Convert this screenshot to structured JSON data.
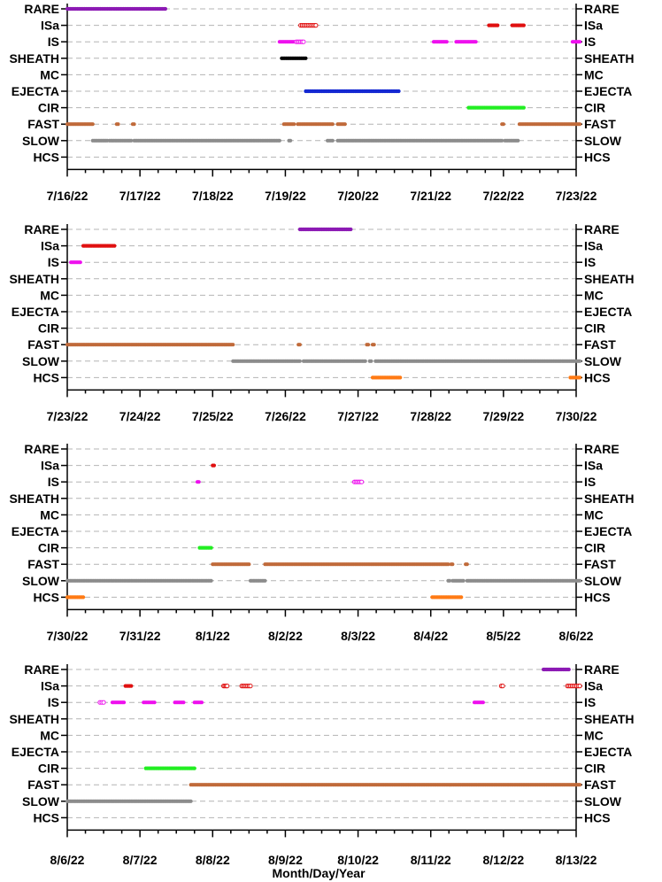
{
  "chart_data": {
    "type": "scatter",
    "category_labels": [
      "RARE",
      "ISa",
      "IS",
      "SHEATH",
      "MC",
      "EJECTA",
      "CIR",
      "FAST",
      "SLOW",
      "HCS"
    ],
    "xlabel": "Month/Day/Year",
    "grid": true,
    "colors": {
      "RARE": "#8c1ab4",
      "ISa": "#e01010",
      "IS": "#ee10ee",
      "SHEATH": "#000000",
      "EJECTA": "#1428d2",
      "CIR": "#22ee22",
      "FAST": "#c06a3a",
      "SLOW": "#8c8c8c",
      "HCS": "#ff7a14"
    },
    "panels": [
      {
        "xlim": [
          "7/16/22",
          "7/23/22"
        ],
        "tick_labels": [
          "7/16/22",
          "7/17/22",
          "7/18/22",
          "7/19/22",
          "7/20/22",
          "7/21/22",
          "7/22/22",
          "7/23/22"
        ],
        "segments": [
          {
            "category": "RARE",
            "start": 0.0,
            "end": 1.35
          },
          {
            "category": "ISa",
            "start": 3.21,
            "end": 3.42,
            "hollow": true
          },
          {
            "category": "ISa",
            "start": 5.8,
            "end": 5.92
          },
          {
            "category": "ISa",
            "start": 6.12,
            "end": 6.28
          },
          {
            "category": "IS",
            "start": 2.92,
            "end": 3.12
          },
          {
            "category": "IS",
            "start": 3.15,
            "end": 3.25,
            "hollow": true
          },
          {
            "category": "IS",
            "start": 5.04,
            "end": 5.22
          },
          {
            "category": "IS",
            "start": 5.35,
            "end": 5.62
          },
          {
            "category": "IS",
            "start": 6.95,
            "end": 7.05
          },
          {
            "category": "SHEATH",
            "start": 2.95,
            "end": 3.28
          },
          {
            "category": "EJECTA",
            "start": 3.28,
            "end": 4.56
          },
          {
            "category": "CIR",
            "start": 5.52,
            "end": 6.28
          },
          {
            "category": "FAST",
            "start": 0.0,
            "end": 0.35
          },
          {
            "category": "FAST",
            "start": 0.68,
            "end": 0.7
          },
          {
            "category": "FAST",
            "start": 0.9,
            "end": 0.92
          },
          {
            "category": "FAST",
            "start": 2.98,
            "end": 3.12
          },
          {
            "category": "FAST",
            "start": 3.17,
            "end": 3.65
          },
          {
            "category": "FAST",
            "start": 3.72,
            "end": 3.82
          },
          {
            "category": "FAST",
            "start": 5.98,
            "end": 6.0
          },
          {
            "category": "FAST",
            "start": 6.22,
            "end": 7.05
          },
          {
            "category": "SLOW",
            "start": 0.35,
            "end": 0.55
          },
          {
            "category": "SLOW",
            "start": 0.58,
            "end": 0.88
          },
          {
            "category": "SLOW",
            "start": 0.92,
            "end": 2.92
          },
          {
            "category": "SLOW",
            "start": 3.05,
            "end": 3.07
          },
          {
            "category": "SLOW",
            "start": 3.58,
            "end": 3.65
          },
          {
            "category": "SLOW",
            "start": 3.72,
            "end": 5.98
          },
          {
            "category": "SLOW",
            "start": 6.02,
            "end": 6.2
          }
        ]
      },
      {
        "xlim": [
          "7/23/22",
          "7/30/22"
        ],
        "tick_labels": [
          "7/23/22",
          "7/24/22",
          "7/25/22",
          "7/26/22",
          "7/27/22",
          "7/28/22",
          "7/29/22",
          "7/30/22"
        ],
        "segments": [
          {
            "category": "RARE",
            "start": 3.2,
            "end": 3.9
          },
          {
            "category": "ISa",
            "start": 0.22,
            "end": 0.65
          },
          {
            "category": "IS",
            "start": 0.05,
            "end": 0.18
          },
          {
            "category": "FAST",
            "start": 0.0,
            "end": 2.28
          },
          {
            "category": "FAST",
            "start": 3.18,
            "end": 3.2
          },
          {
            "category": "FAST",
            "start": 4.12,
            "end": 4.14
          },
          {
            "category": "FAST",
            "start": 4.2,
            "end": 4.22
          },
          {
            "category": "SLOW",
            "start": 2.28,
            "end": 3.2
          },
          {
            "category": "SLOW",
            "start": 3.25,
            "end": 4.1
          },
          {
            "category": "SLOW",
            "start": 4.16,
            "end": 4.18
          },
          {
            "category": "SLOW",
            "start": 4.24,
            "end": 7.05
          },
          {
            "category": "HCS",
            "start": 4.2,
            "end": 4.58
          },
          {
            "category": "HCS",
            "start": 6.92,
            "end": 7.05
          }
        ]
      },
      {
        "xlim": [
          "7/30/22",
          "8/6/22"
        ],
        "tick_labels": [
          "7/30/22",
          "7/31/22",
          "8/1/22",
          "8/2/22",
          "8/3/22",
          "8/4/22",
          "8/5/22",
          "8/6/22"
        ],
        "segments": [
          {
            "category": "ISa",
            "start": 2.0,
            "end": 2.02
          },
          {
            "category": "IS",
            "start": 1.79,
            "end": 1.81
          },
          {
            "category": "IS",
            "start": 3.95,
            "end": 4.05,
            "hollow": true
          },
          {
            "category": "CIR",
            "start": 1.82,
            "end": 1.98
          },
          {
            "category": "FAST",
            "start": 2.0,
            "end": 2.5
          },
          {
            "category": "FAST",
            "start": 2.72,
            "end": 5.24
          },
          {
            "category": "FAST",
            "start": 5.28,
            "end": 5.3
          },
          {
            "category": "FAST",
            "start": 5.48,
            "end": 5.5
          },
          {
            "category": "SLOW",
            "start": 0.0,
            "end": 1.98
          },
          {
            "category": "SLOW",
            "start": 2.52,
            "end": 2.72
          },
          {
            "category": "SLOW",
            "start": 5.24,
            "end": 5.26
          },
          {
            "category": "SLOW",
            "start": 5.3,
            "end": 5.45
          },
          {
            "category": "SLOW",
            "start": 5.5,
            "end": 7.05
          },
          {
            "category": "HCS",
            "start": 0.0,
            "end": 0.22
          },
          {
            "category": "HCS",
            "start": 5.02,
            "end": 5.42
          }
        ]
      },
      {
        "xlim": [
          "8/6/22",
          "8/13/22"
        ],
        "tick_labels": [
          "8/6/22",
          "8/7/22",
          "8/8/22",
          "8/9/22",
          "8/10/22",
          "8/11/22",
          "8/12/22",
          "8/13/22"
        ],
        "segments": [
          {
            "category": "RARE",
            "start": 6.55,
            "end": 6.9
          },
          {
            "category": "ISa",
            "start": 0.8,
            "end": 0.88
          },
          {
            "category": "ISa",
            "start": 2.15,
            "end": 2.2,
            "hollow": true
          },
          {
            "category": "ISa",
            "start": 2.4,
            "end": 2.52,
            "hollow": true
          },
          {
            "category": "ISa",
            "start": 5.97,
            "end": 5.99,
            "hollow": true
          },
          {
            "category": "ISa",
            "start": 6.88,
            "end": 7.05,
            "hollow": true
          },
          {
            "category": "IS",
            "start": 0.45,
            "end": 0.5,
            "hollow": true
          },
          {
            "category": "IS",
            "start": 0.62,
            "end": 0.78
          },
          {
            "category": "IS",
            "start": 1.05,
            "end": 1.2
          },
          {
            "category": "IS",
            "start": 1.48,
            "end": 1.6
          },
          {
            "category": "IS",
            "start": 1.75,
            "end": 1.85
          },
          {
            "category": "IS",
            "start": 5.6,
            "end": 5.72
          },
          {
            "category": "CIR",
            "start": 1.08,
            "end": 1.75
          },
          {
            "category": "FAST",
            "start": 1.7,
            "end": 7.05
          },
          {
            "category": "SLOW",
            "start": 0.0,
            "end": 1.7
          }
        ]
      }
    ]
  }
}
